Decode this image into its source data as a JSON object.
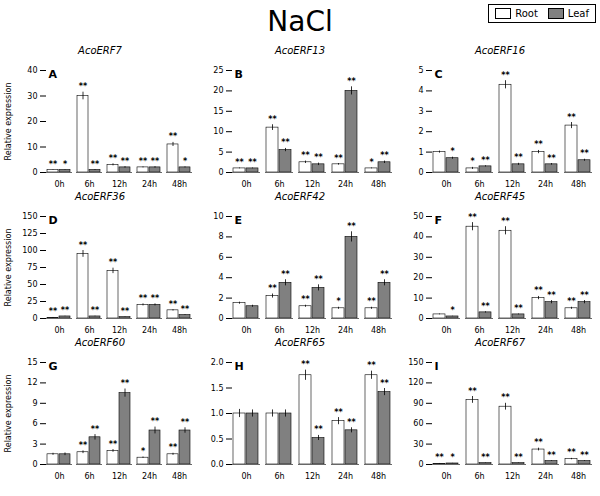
{
  "title": "NaCl",
  "legend": "upper right",
  "chart_data": [
    {
      "type": "bar",
      "title": "AcoERF7",
      "annotations": [
        "A"
      ],
      "ylabel": "Relative expression",
      "categories": [
        "0h",
        "6h",
        "12h",
        "24h",
        "48h"
      ],
      "ylim": [
        0,
        40
      ],
      "yticks": [
        0,
        10,
        20,
        30,
        40
      ],
      "series": [
        {
          "name": "Root",
          "color": "#FFFFFF",
          "values": [
            1.0,
            30.0,
            3.0,
            2.0,
            11.0
          ],
          "errors": [
            0.1,
            1.5,
            0.4,
            0.2,
            0.8
          ],
          "stars": [
            "**",
            "**",
            "**",
            "**",
            "**"
          ]
        },
        {
          "name": "Leaf",
          "color": "#808080",
          "values": [
            1.0,
            1.0,
            2.0,
            2.0,
            2.0
          ],
          "errors": [
            0.1,
            0.15,
            0.3,
            0.3,
            0.2
          ],
          "stars": [
            "*",
            "**",
            "**",
            "**",
            "*"
          ]
        }
      ]
    },
    {
      "type": "bar",
      "title": "AcoERF13",
      "annotations": [
        "B"
      ],
      "categories": [
        "0h",
        "6h",
        "12h",
        "24h",
        "48h"
      ],
      "ylim": [
        0,
        25
      ],
      "yticks": [
        0,
        5,
        10,
        15,
        20,
        25
      ],
      "series": [
        {
          "name": "Root",
          "color": "#FFFFFF",
          "values": [
            1.0,
            11.0,
            2.5,
            2.0,
            1.0
          ],
          "errors": [
            0.1,
            0.7,
            0.3,
            0.2,
            0.1
          ],
          "stars": [
            "**",
            "**",
            "**",
            "**",
            "*"
          ]
        },
        {
          "name": "Leaf",
          "color": "#808080",
          "values": [
            1.0,
            5.5,
            2.0,
            20.0,
            2.5
          ],
          "errors": [
            0.1,
            0.4,
            0.3,
            1.0,
            0.3
          ],
          "stars": [
            "**",
            "**",
            "**",
            "**",
            "**"
          ]
        }
      ]
    },
    {
      "type": "bar",
      "title": "AcoERF16",
      "annotations": [
        "C"
      ],
      "categories": [
        "0h",
        "6h",
        "12h",
        "24h",
        "48h"
      ],
      "ylim": [
        0,
        5
      ],
      "yticks": [
        0,
        1,
        2,
        3,
        4,
        5
      ],
      "series": [
        {
          "name": "Root",
          "color": "#FFFFFF",
          "values": [
            1.0,
            0.2,
            4.3,
            1.0,
            2.3
          ],
          "errors": [
            0.05,
            0.05,
            0.2,
            0.08,
            0.15
          ],
          "stars": [
            null,
            "*",
            "**",
            "**",
            "**"
          ]
        },
        {
          "name": "Leaf",
          "color": "#808080",
          "values": [
            0.7,
            0.3,
            0.4,
            0.4,
            0.6
          ],
          "errors": [
            0.05,
            0.03,
            0.05,
            0.04,
            0.05
          ],
          "stars": [
            "*",
            "**",
            "**",
            "**",
            "**"
          ]
        }
      ]
    },
    {
      "type": "bar",
      "title": "AcoERF36",
      "annotations": [
        "D"
      ],
      "ylabel": "Relative expression",
      "categories": [
        "0h",
        "6h",
        "12h",
        "24h",
        "48h"
      ],
      "ylim": [
        0,
        150
      ],
      "yticks": [
        0,
        25,
        50,
        75,
        100,
        125,
        150
      ],
      "series": [
        {
          "name": "Root",
          "color": "#FFFFFF",
          "values": [
            1.0,
            95.0,
            70.0,
            20.0,
            12.0
          ],
          "errors": [
            0.5,
            5.0,
            4.0,
            1.5,
            1.0
          ],
          "stars": [
            "**",
            "**",
            "**",
            "**",
            "**"
          ]
        },
        {
          "name": "Leaf",
          "color": "#808080",
          "values": [
            3.0,
            3.0,
            2.0,
            20.0,
            5.0
          ],
          "errors": [
            0.3,
            0.4,
            0.3,
            1.5,
            0.5
          ],
          "stars": [
            "**",
            "**",
            "**",
            "**",
            "**"
          ]
        }
      ]
    },
    {
      "type": "bar",
      "title": "AcoERF42",
      "annotations": [
        "E"
      ],
      "categories": [
        "0h",
        "6h",
        "12h",
        "24h",
        "48h"
      ],
      "ylim": [
        0,
        10
      ],
      "yticks": [
        0,
        2,
        4,
        6,
        8,
        10
      ],
      "series": [
        {
          "name": "Root",
          "color": "#FFFFFF",
          "values": [
            1.5,
            2.2,
            1.2,
            1.0,
            1.0
          ],
          "errors": [
            0.1,
            0.2,
            0.1,
            0.1,
            0.1
          ],
          "stars": [
            null,
            "**",
            "**",
            "*",
            "**"
          ]
        },
        {
          "name": "Leaf",
          "color": "#808080",
          "values": [
            1.2,
            3.5,
            3.0,
            8.0,
            3.5
          ],
          "errors": [
            0.1,
            0.3,
            0.3,
            0.5,
            0.3
          ],
          "stars": [
            null,
            "**",
            "**",
            "**",
            "**"
          ]
        }
      ]
    },
    {
      "type": "bar",
      "title": "AcoERF45",
      "annotations": [
        "F"
      ],
      "categories": [
        "0h",
        "6h",
        "12h",
        "24h",
        "48h"
      ],
      "ylim": [
        0,
        50
      ],
      "yticks": [
        0,
        10,
        20,
        30,
        40,
        50
      ],
      "series": [
        {
          "name": "Root",
          "color": "#FFFFFF",
          "values": [
            2.0,
            45.0,
            43.0,
            10.0,
            5.0
          ],
          "errors": [
            0.2,
            2.0,
            2.0,
            0.8,
            0.5
          ],
          "stars": [
            null,
            "**",
            "**",
            "**",
            "**"
          ]
        },
        {
          "name": "Leaf",
          "color": "#808080",
          "values": [
            1.0,
            3.0,
            2.0,
            8.0,
            8.0
          ],
          "errors": [
            0.1,
            0.3,
            0.2,
            0.8,
            0.8
          ],
          "stars": [
            "*",
            "**",
            "**",
            "**",
            "**"
          ]
        }
      ]
    },
    {
      "type": "bar",
      "title": "AcoERF60",
      "annotations": [
        "G"
      ],
      "ylabel": "Relative expression",
      "categories": [
        "0h",
        "6h",
        "12h",
        "24h",
        "48h"
      ],
      "ylim": [
        0,
        15
      ],
      "yticks": [
        0,
        3,
        6,
        9,
        12,
        15
      ],
      "series": [
        {
          "name": "Root",
          "color": "#FFFFFF",
          "values": [
            1.5,
            1.8,
            2.0,
            1.0,
            1.5
          ],
          "errors": [
            0.15,
            0.2,
            0.2,
            0.1,
            0.15
          ],
          "stars": [
            null,
            "**",
            "**",
            "*",
            "**"
          ]
        },
        {
          "name": "Leaf",
          "color": "#808080",
          "values": [
            1.5,
            4.0,
            10.5,
            5.0,
            5.0
          ],
          "errors": [
            0.2,
            0.4,
            0.6,
            0.5,
            0.4
          ],
          "stars": [
            null,
            "**",
            "**",
            "**",
            "**"
          ]
        }
      ]
    },
    {
      "type": "bar",
      "title": "AcoERF65",
      "annotations": [
        "H"
      ],
      "categories": [
        "0h",
        "6h",
        "12h",
        "24h",
        "48h"
      ],
      "ylim": [
        0.0,
        2.0
      ],
      "yticks": [
        {
          "value": 0.0,
          "label": "0.0"
        },
        0.5,
        {
          "value": 1.0,
          "label": "1.0"
        },
        1.5,
        {
          "value": 2.0,
          "label": "2.0"
        }
      ],
      "series": [
        {
          "name": "Root",
          "color": "#FFFFFF",
          "values": [
            1.0,
            1.0,
            1.75,
            0.85,
            1.75
          ],
          "errors": [
            0.08,
            0.07,
            0.1,
            0.07,
            0.08
          ],
          "stars": [
            null,
            null,
            "**",
            "**",
            "**"
          ]
        },
        {
          "name": "Leaf",
          "color": "#808080",
          "values": [
            1.0,
            1.0,
            0.52,
            0.67,
            1.42
          ],
          "errors": [
            0.07,
            0.07,
            0.05,
            0.05,
            0.07
          ],
          "stars": [
            null,
            null,
            "**",
            "**",
            "**"
          ]
        }
      ]
    },
    {
      "type": "bar",
      "title": "AcoERF67",
      "annotations": [
        "I"
      ],
      "categories": [
        "0h",
        "6h",
        "12h",
        "24h",
        "48h"
      ],
      "ylim": [
        0,
        150
      ],
      "yticks": [
        0,
        30,
        60,
        90,
        120,
        150
      ],
      "series": [
        {
          "name": "Root",
          "color": "#FFFFFF",
          "values": [
            1.0,
            95.0,
            85.0,
            22.0,
            8.0
          ],
          "errors": [
            0.5,
            5.0,
            5.0,
            2.0,
            1.0
          ],
          "stars": [
            "**",
            "**",
            "**",
            "**",
            "**"
          ]
        },
        {
          "name": "Leaf",
          "color": "#808080",
          "values": [
            1.5,
            2.0,
            2.0,
            5.0,
            5.0
          ],
          "errors": [
            0.2,
            0.3,
            0.3,
            0.5,
            0.5
          ],
          "stars": [
            "*",
            "**",
            "**",
            "**",
            "**"
          ]
        }
      ]
    }
  ]
}
